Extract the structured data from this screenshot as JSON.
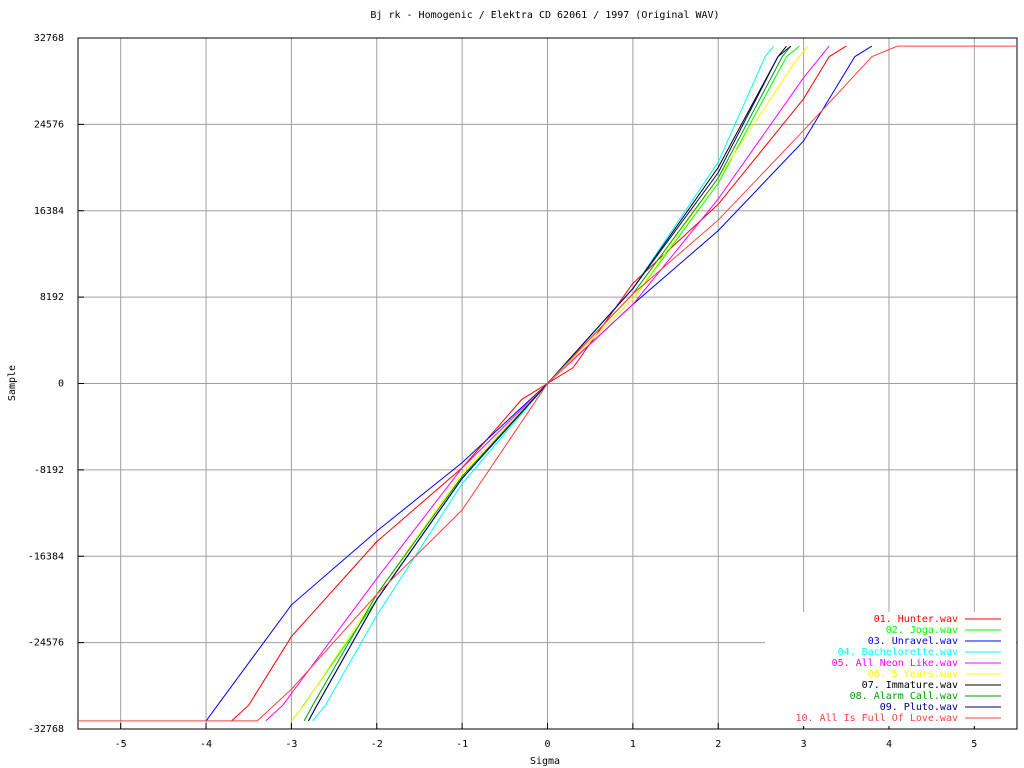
{
  "chart_data": {
    "type": "line",
    "title": "Bj rk - Homogenic / Elektra CD 62061 / 1997 (Original WAV)",
    "x_label": "Sigma",
    "y_label": "Sample",
    "xlim": [
      -5.5,
      5.5
    ],
    "xticks": [
      -5,
      -4,
      -3,
      -2,
      -1,
      0,
      1,
      2,
      3,
      4,
      5
    ],
    "ylim": [
      -32768,
      32768
    ],
    "yticks": [
      -32768,
      -24576,
      -16384,
      -8192,
      0,
      8192,
      16384,
      24576,
      32768
    ],
    "grid": true,
    "legend": "lower right",
    "series": [
      {
        "name": "01. Hunter.wav",
        "color": "#ff0000",
        "x": [
          -3.7,
          -3.5,
          -3,
          -2,
          -1,
          -0.3,
          0,
          0.3,
          1,
          2,
          3,
          3.3,
          3.5
        ],
        "values": [
          -32000,
          -30500,
          -24000,
          -15000,
          -8000,
          -1500,
          0,
          1500,
          9500,
          17000,
          27000,
          31000,
          32000
        ]
      },
      {
        "name": "02. Joga.wav",
        "color": "#00ff00",
        "x": [
          -3.0,
          -2.9,
          -2,
          -1,
          0,
          1,
          2,
          2.8,
          2.95
        ],
        "values": [
          -32000,
          -31000,
          -20500,
          -9000,
          0,
          8000,
          19000,
          31000,
          32000
        ]
      },
      {
        "name": "03. Unravel.wav",
        "color": "#0000ff",
        "x": [
          -4.0,
          -3,
          -2,
          -1,
          0,
          1,
          2,
          3,
          3.6,
          3.8
        ],
        "values": [
          -32000,
          -21000,
          -14000,
          -7500,
          0,
          7500,
          14500,
          23000,
          31000,
          32000
        ]
      },
      {
        "name": "04. Bachelorette.wav",
        "color": "#00ffff",
        "x": [
          -2.75,
          -2.6,
          -2,
          -1,
          0,
          1,
          2,
          2.55,
          2.65
        ],
        "values": [
          -32000,
          -30500,
          -22000,
          -9500,
          0,
          9000,
          21000,
          31000,
          32000
        ]
      },
      {
        "name": "05. All Neon Like.wav",
        "color": "#ff00ff",
        "x": [
          -3.3,
          -3.1,
          -2,
          -1,
          0,
          1,
          2,
          3,
          3.3
        ],
        "values": [
          -32000,
          -30500,
          -18500,
          -8000,
          0,
          7500,
          17500,
          29000,
          32000
        ]
      },
      {
        "name": "06. 5 Years.wav",
        "color": "#ffff00",
        "x": [
          -3.0,
          -2.85,
          -2,
          -1,
          0,
          1,
          2,
          2.9,
          3.05
        ],
        "values": [
          -32000,
          -30500,
          -20000,
          -8500,
          0,
          8000,
          19500,
          30500,
          32000
        ]
      },
      {
        "name": "07. Immature.wav",
        "color": "#000000",
        "x": [
          -2.8,
          -2.7,
          -2,
          -1,
          0,
          1,
          2,
          2.7,
          2.8
        ],
        "values": [
          -32000,
          -30500,
          -20500,
          -9000,
          0,
          9000,
          20500,
          31000,
          32000
        ]
      },
      {
        "name": "08. Alarm Call.wav",
        "color": "#00a000",
        "x": [
          -2.85,
          -2.75,
          -2,
          -1,
          0,
          1,
          2,
          2.75,
          2.85
        ],
        "values": [
          -32000,
          -30500,
          -20000,
          -8800,
          0,
          8500,
          19500,
          31000,
          32000
        ]
      },
      {
        "name": "09. Pluto.wav",
        "color": "#000080",
        "x": [
          -2.8,
          -2.7,
          -2,
          -1,
          0,
          1,
          2,
          2.7,
          2.85
        ],
        "values": [
          -32000,
          -30500,
          -20500,
          -9000,
          0,
          9000,
          20000,
          31000,
          32000
        ]
      },
      {
        "name": "10. All Is Full Of Love.wav",
        "color": "#ff4040",
        "x": [
          -5.5,
          -3.4,
          -3,
          -2,
          -1,
          0,
          1,
          2,
          3,
          3.8,
          4.1,
          5.5
        ],
        "values": [
          -32000,
          -32000,
          -29000,
          -20000,
          -12000,
          0,
          8500,
          15500,
          24000,
          31000,
          32000,
          32000
        ]
      }
    ]
  }
}
